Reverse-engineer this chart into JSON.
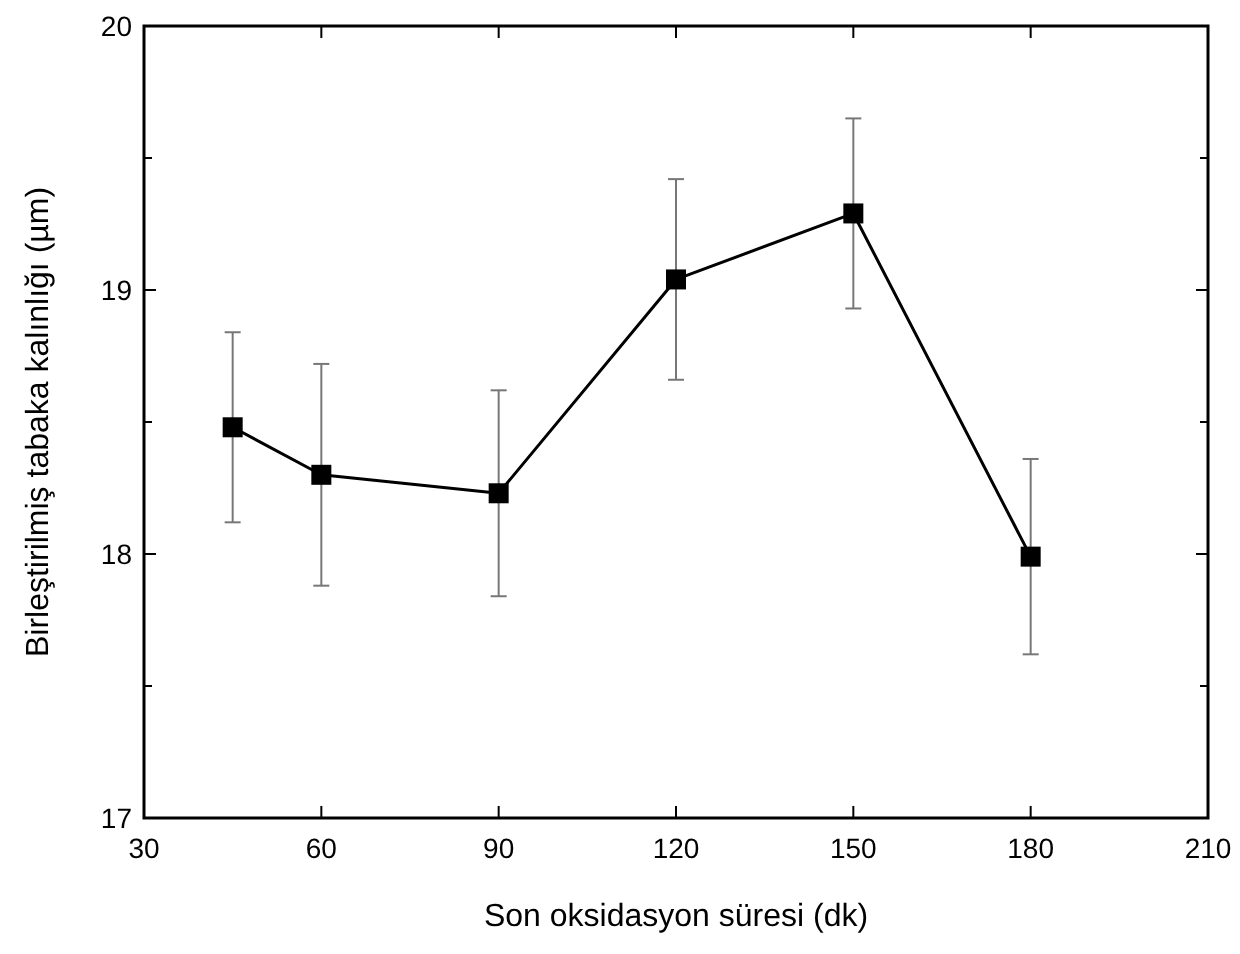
{
  "chart_data": {
    "type": "line",
    "xlabel": "Son oksidasyon süresi (dk)",
    "ylabel": "Birleştirilmiş tabaka kalınlığı (µm)",
    "x": [
      45,
      60,
      90,
      120,
      150,
      180
    ],
    "series": [
      {
        "color": "#000000",
        "values": [
          18.48,
          18.3,
          18.23,
          19.04,
          19.29,
          17.99
        ],
        "errors": [
          0.36,
          0.42,
          0.39,
          0.38,
          0.36,
          0.37
        ]
      }
    ],
    "xlim": [
      30,
      210
    ],
    "xticks": [
      30,
      60,
      90,
      120,
      150,
      180,
      210
    ],
    "ylim": [
      17,
      20
    ],
    "yticks": [
      17,
      {
        "value": 17.5,
        "label": null
      },
      18,
      {
        "value": 18.5,
        "label": null
      },
      19,
      {
        "value": 19.5,
        "label": null
      },
      20
    ],
    "marker": "square",
    "line_style": "solid",
    "grid": false
  }
}
